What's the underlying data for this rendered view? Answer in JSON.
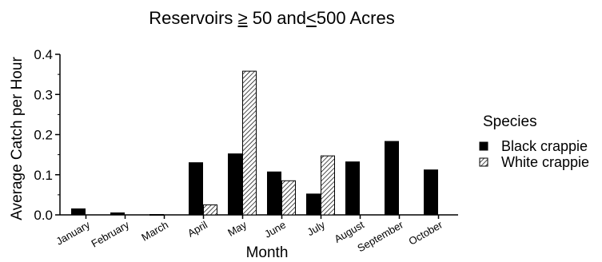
{
  "chart_data": {
    "type": "bar",
    "title": "Reservoirs",
    "title_geq": "≥",
    "title_mid": " 50 and",
    "title_lt": "<",
    "title_end": "500 Acres",
    "xlabel": "Month",
    "ylabel": "Average Catch per Hour",
    "ylim": [
      0,
      0.4
    ],
    "yticks": [
      "0.0",
      "0.1",
      "0.2",
      "0.3",
      "0.4"
    ],
    "ytick_values": [
      0,
      0.1,
      0.2,
      0.3,
      0.4
    ],
    "categories": [
      "January",
      "February",
      "March",
      "April",
      "May",
      "June",
      "July",
      "August",
      "September",
      "October"
    ],
    "series": [
      {
        "name": "Black crappie",
        "pattern": "solid",
        "color": "#000000",
        "values": [
          0.015,
          0.005,
          0.001,
          0.13,
          0.152,
          0.107,
          0.052,
          0.132,
          0.183,
          0.112
        ]
      },
      {
        "name": "White crappie",
        "pattern": "hatch",
        "color": "#000000",
        "values": [
          0.0,
          0.0,
          0.0,
          0.025,
          0.358,
          0.085,
          0.147,
          0.0,
          0.0,
          0.0
        ]
      }
    ],
    "legend_title": "Species",
    "legend_position": "right",
    "grid": false
  }
}
